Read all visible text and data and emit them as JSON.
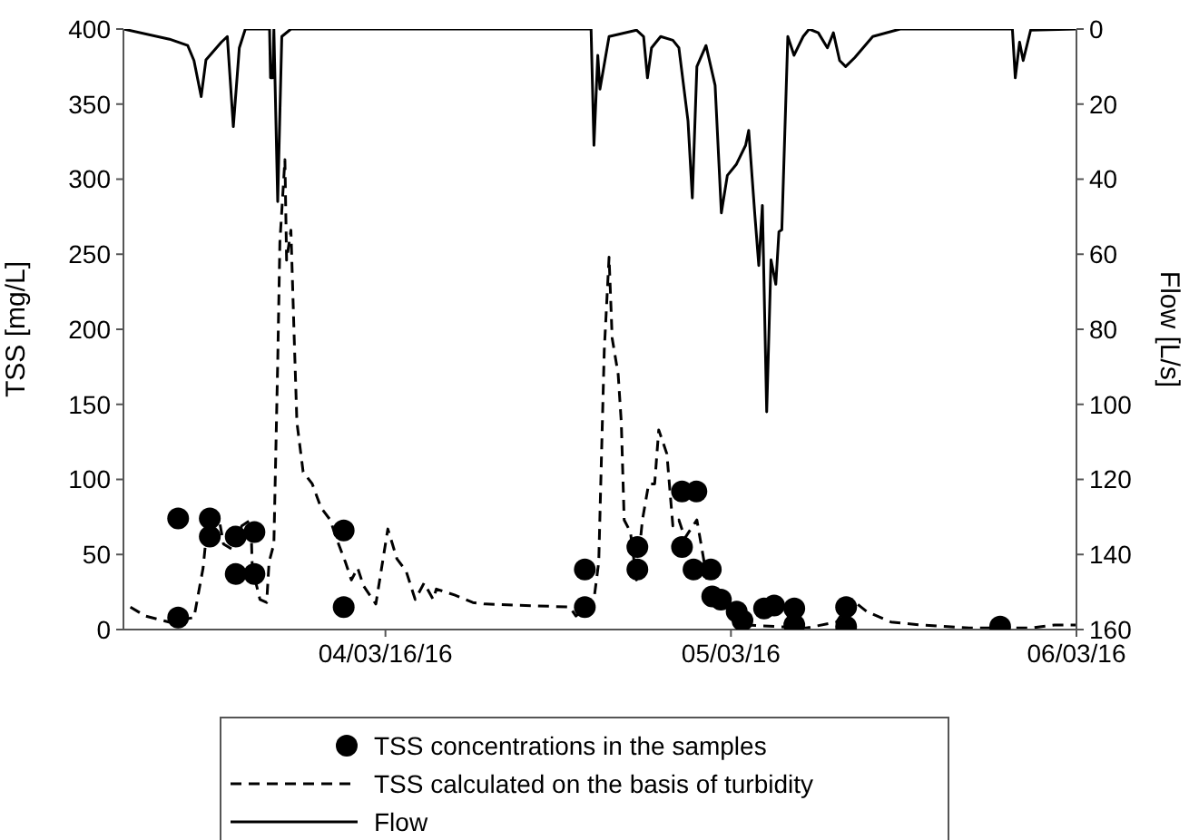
{
  "chart_data": {
    "type": "line",
    "ylabel": "TSS [mg/L]",
    "y2label": "Flow [L/s]",
    "xlim": [
      "--03-03T05:48",
      "--03-06T00:00"
    ],
    "xticks": [
      {
        "value": "--03-04",
        "label": "04/03/16/16"
      },
      {
        "value": "--03-05",
        "label": "05/03/16"
      },
      {
        "value": "--03-06",
        "label": "06/03/16"
      }
    ],
    "ylim": [
      0,
      400
    ],
    "yticks": [
      0,
      50,
      100,
      150,
      200,
      250,
      300,
      350,
      400
    ],
    "y2lim": [
      160,
      0
    ],
    "y2ticks": [
      0,
      20,
      40,
      60,
      80,
      100,
      120,
      140,
      160
    ],
    "legend": "bottom",
    "series": [
      {
        "name": "TSS concentrations in the samples",
        "type": "scatter",
        "marker": "circle",
        "color": "#000000",
        "x": [
          "--03-03T09:36",
          "--03-03T09:36",
          "--03-03T11:48",
          "--03-03T11:48",
          "--03-03T13:36",
          "--03-03T13:36",
          "--03-03T14:54",
          "--03-03T14:54",
          "--03-03T21:06",
          "--03-03T21:06",
          "--03-04T13:51",
          "--03-04T13:51",
          "--03-04T17:30",
          "--03-04T17:30",
          "--03-04T20:36",
          "--03-04T20:36",
          "--03-04T21:24",
          "--03-04T21:36",
          "--03-04T22:36",
          "--03-04T22:42",
          "--03-04T23:18",
          "--03-05T00:00",
          "--03-05T00:24",
          "--03-05T00:48",
          "--03-05T02:00",
          "--03-05T02:18",
          "--03-05T03:00",
          "--03-05T04:24",
          "--03-05T04:24",
          "--03-05T08:00",
          "--03-05T08:00",
          "--03-05T18:42"
        ],
        "values": [
          74,
          8,
          74,
          62,
          62,
          37,
          65,
          37,
          66,
          15,
          40,
          15,
          55,
          40,
          92,
          55,
          40,
          92,
          40,
          22,
          20,
          null,
          12,
          6,
          null,
          14,
          16,
          14,
          3,
          15,
          2,
          2
        ]
      },
      {
        "name": "TSS calculated on the basis of turbidity",
        "line_style": "dashed",
        "marker": "none",
        "color": "#000000",
        "x": [
          "--03-03T06:17",
          "--03-03T07:19",
          "--03-03T08:58",
          "--03-03T10:42",
          "--03-03T11:20",
          "--03-03T11:45",
          "--03-03T12:23",
          "--03-03T12:45",
          "--03-03T13:26",
          "--03-03T14:01",
          "--03-03T14:39",
          "--03-03T14:45",
          "--03-03T15:17",
          "--03-03T15:45",
          "--03-03T15:55",
          "--03-03T16:15",
          "--03-03T16:31",
          "--03-03T16:40",
          "--03-03T17:01",
          "--03-03T17:08",
          "--03-03T17:26",
          "--03-03T17:39",
          "--03-03T17:51",
          "--03-03T18:17",
          "--03-03T18:55",
          "--03-03T19:32",
          "--03-03T20:10",
          "--03-03T20:35",
          "--03-03T21:13",
          "--03-03T21:38",
          "--03-03T22:04",
          "--03-03T22:29",
          "--03-03T23:20",
          "--03-04T00:10",
          "--03-04T00:48",
          "--03-04T01:26",
          "--03-04T02:04",
          "--03-04T02:41",
          "--03-04T03:19",
          "--03-04T03:32",
          "--03-04T04:48",
          "--03-04T06:04",
          "--03-04T06:55",
          "--03-04T12:48",
          "--03-04T13:14",
          "--03-04T14:29",
          "--03-04T14:49",
          "--03-04T15:00",
          "--03-04T15:12",
          "--03-04T15:32",
          "--03-04T15:45",
          "--03-04T16:10",
          "--03-04T16:23",
          "--03-04T16:35",
          "--03-04T17:01",
          "--03-04T17:26",
          "--03-04T17:51",
          "--03-04T18:17",
          "--03-04T18:42",
          "--03-04T18:59",
          "--03-04T19:33",
          "--03-04T19:58",
          "--03-04T20:23",
          "--03-04T20:48",
          "--03-04T21:38",
          "--03-04T22:04",
          "--03-04T22:29",
          "--03-04T23:20",
          "--03-05T00:10",
          "--03-05T01:01",
          "--03-05T05:13",
          "--03-05T07:20",
          "--03-05T08:23",
          "--03-05T09:26",
          "--03-05T11:07",
          "--03-05T13:14",
          "--03-05T16:33",
          "--03-05T20:49",
          "--03-05T22:29",
          "--03-06T00:00"
        ],
        "values": [
          15,
          9,
          5,
          8,
          41,
          81,
          77,
          57,
          53,
          69,
          73,
          41,
          20,
          18,
          45,
          57,
          178,
          258,
          313,
          246,
          266,
          198,
          138,
          105,
          97,
          81,
          73,
          61,
          45,
          33,
          41,
          29,
          17,
          67,
          47,
          39,
          20,
          31,
          20,
          27,
          23,
          18,
          17,
          15,
          9,
          20,
          45,
          113,
          186,
          248,
          194,
          170,
          138,
          73,
          65,
          33,
          73,
          97,
          97,
          133,
          117,
          69,
          73,
          61,
          73,
          49,
          25,
          17,
          9,
          3,
          1,
          5,
          20,
          12,
          5,
          3,
          1,
          1,
          3,
          3
        ]
      },
      {
        "name": "Flow",
        "axis": "y2",
        "line_style": "solid",
        "marker": "none",
        "color": "#000000",
        "x": [
          "--03-03T05:48",
          "--03-03T09:00",
          "--03-03T10:16",
          "--03-03T10:42",
          "--03-03T11:12",
          "--03-03T11:32",
          "--03-03T12:36",
          "--03-03T13:01",
          "--03-03T13:26",
          "--03-03T13:51",
          "--03-03T14:16",
          "--03-03T15:57",
          "--03-03T16:01",
          "--03-03T16:10",
          "--03-03T16:15",
          "--03-03T16:31",
          "--03-03T16:48",
          "--03-03T17:26",
          "--03-04T14:17",
          "--03-04T14:29",
          "--03-04T14:45",
          "--03-04T14:54",
          "--03-04T15:32",
          "--03-04T17:26",
          "--03-04T17:56",
          "--03-04T18:12",
          "--03-04T18:29",
          "--03-04T19:07",
          "--03-04T19:58",
          "--03-04T20:23",
          "--03-04T21:01",
          "--03-04T21:19",
          "--03-04T21:38",
          "--03-04T22:16",
          "--03-04T22:54",
          "--03-04T23:20",
          "--03-04T23:45",
          "--03-05T00:23",
          "--03-05T01:01",
          "--03-05T01:14",
          "--03-05T01:39",
          "--03-05T01:56",
          "--03-05T02:11",
          "--03-05T02:29",
          "--03-05T02:47",
          "--03-05T03:07",
          "--03-05T03:20",
          "--03-05T03:32",
          "--03-05T03:57",
          "--03-05T04:23",
          "--03-05T05:01",
          "--03-05T05:26",
          "--03-05T06:04",
          "--03-05T06:42",
          "--03-05T07:07",
          "--03-05T07:33",
          "--03-05T07:58",
          "--03-05T08:36",
          "--03-05T09:51",
          "--03-05T11:45",
          "--03-05T19:33",
          "--03-05T19:45",
          "--03-05T20:03",
          "--03-05T20:18",
          "--03-05T20:49",
          "--03-06T00:00"
        ],
        "values": [
          0,
          2.7,
          4.4,
          8.4,
          18,
          8.2,
          3.5,
          2,
          26,
          5,
          0,
          0,
          13,
          13,
          0,
          46,
          2,
          0,
          0,
          31,
          7,
          16,
          2,
          0.3,
          2,
          13,
          5,
          2,
          3,
          5,
          24.5,
          45,
          10,
          4.4,
          15,
          49,
          39,
          36,
          31,
          27,
          49,
          63,
          47,
          102,
          61.5,
          68,
          54,
          53.5,
          2,
          7,
          2,
          0,
          1,
          5,
          1,
          8.4,
          10,
          7.6,
          2,
          0,
          0,
          13,
          3.5,
          8.4,
          0.3,
          0
        ]
      }
    ]
  }
}
